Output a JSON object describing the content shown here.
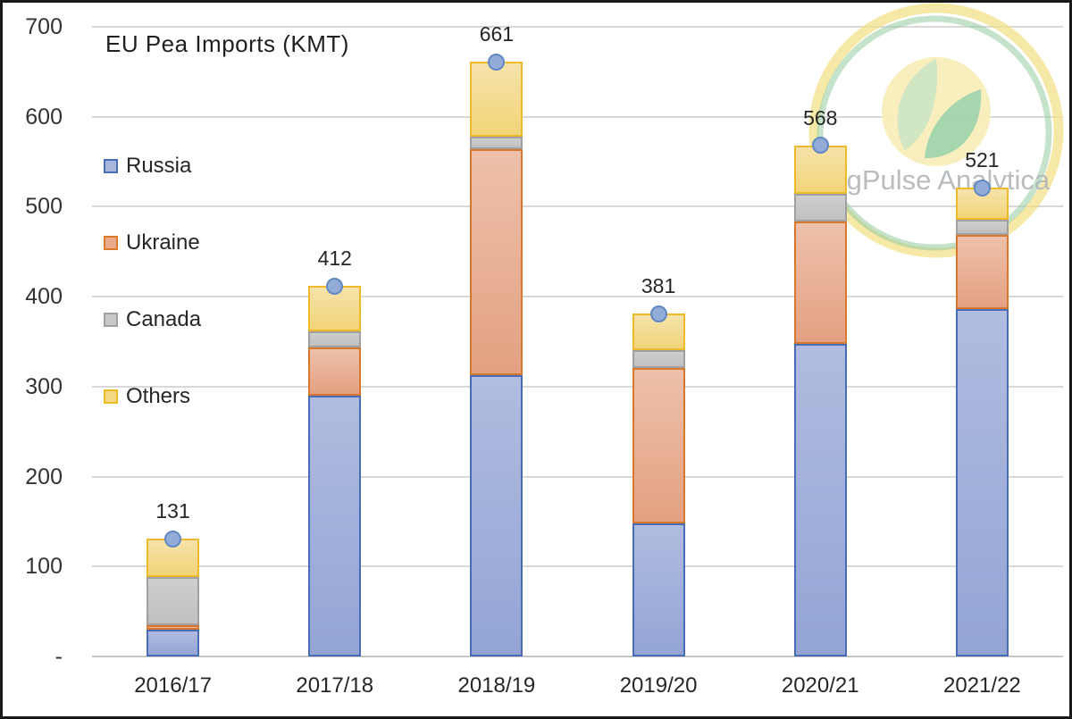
{
  "chart": {
    "title": "EU Pea Imports (KMT)",
    "watermark": "AgPulse Analytica"
  },
  "chart_data": {
    "type": "bar",
    "stacked": true,
    "title": "EU Pea Imports (KMT)",
    "categories": [
      "2016/17",
      "2017/18",
      "2018/19",
      "2019/20",
      "2020/21",
      "2021/22"
    ],
    "series": [
      {
        "name": "Russia",
        "values": [
          30,
          290,
          313,
          148,
          348,
          386
        ],
        "fill_top": "#b0bce0",
        "fill_bottom": "#93a5d5",
        "border": "#4a6cb8",
        "legend_fill": "#a9b7dd"
      },
      {
        "name": "Ukraine",
        "values": [
          5,
          54,
          251,
          173,
          136,
          83
        ],
        "fill_top": "#eec0aa",
        "fill_bottom": "#e3a182",
        "border": "#d8782f",
        "legend_fill": "#ecab8b"
      },
      {
        "name": "Canada",
        "values": [
          53,
          17,
          14,
          20,
          30,
          17
        ],
        "fill_top": "#cecece",
        "fill_bottom": "#c0c0c0",
        "border": "#a0a0a0",
        "legend_fill": "#c8c8c8"
      },
      {
        "name": "Others",
        "values": [
          43,
          51,
          83,
          40,
          54,
          35
        ],
        "fill_top": "#f6e3ab",
        "fill_bottom": "#f2d478",
        "border": "#eeba2b",
        "legend_fill": "#f5da85"
      }
    ],
    "totals": [
      "131",
      "412",
      "661",
      "381",
      "568",
      "521"
    ],
    "marker": {
      "fill": "#92abd7",
      "border": "#6288c2"
    },
    "y_ticks": [
      "700",
      "600",
      "500",
      "400",
      "300",
      "200",
      "100",
      "-"
    ],
    "ylim": [
      0,
      700
    ],
    "grid": true,
    "gridline_color": "#d9d9d9",
    "legend_position": "left",
    "xlabel": "",
    "ylabel": ""
  }
}
